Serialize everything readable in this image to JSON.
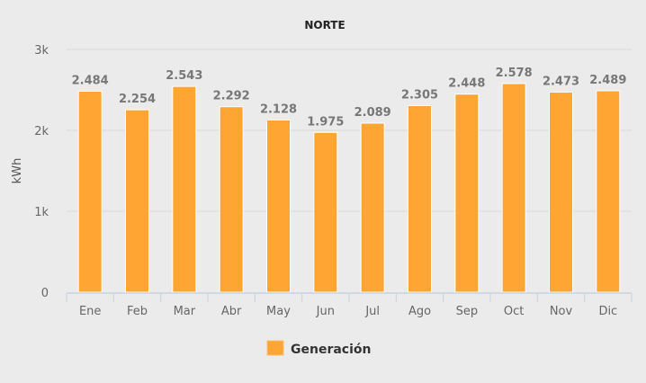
{
  "chart_data": {
    "type": "bar",
    "title": "NORTE",
    "xlabel": "",
    "ylabel": "kWh",
    "ylim": [
      0,
      3000
    ],
    "yticks": [
      "0",
      "1k",
      "2k",
      "3k"
    ],
    "grid": true,
    "legend_position": "bottom",
    "categories": [
      "Ene",
      "Feb",
      "Mar",
      "Abr",
      "May",
      "Jun",
      "Jul",
      "Ago",
      "Sep",
      "Oct",
      "Nov",
      "Dic"
    ],
    "series": [
      {
        "name": "Generación",
        "color": "#ffa533",
        "values": [
          2484,
          2254,
          2543,
          2292,
          2128,
          1975,
          2089,
          2305,
          2448,
          2578,
          2473,
          2489
        ],
        "labels": [
          "2.484",
          "2.254",
          "2.543",
          "2.292",
          "2.128",
          "1.975",
          "2.089",
          "2.305",
          "2.448",
          "2.578",
          "2.473",
          "2.489"
        ]
      }
    ]
  }
}
